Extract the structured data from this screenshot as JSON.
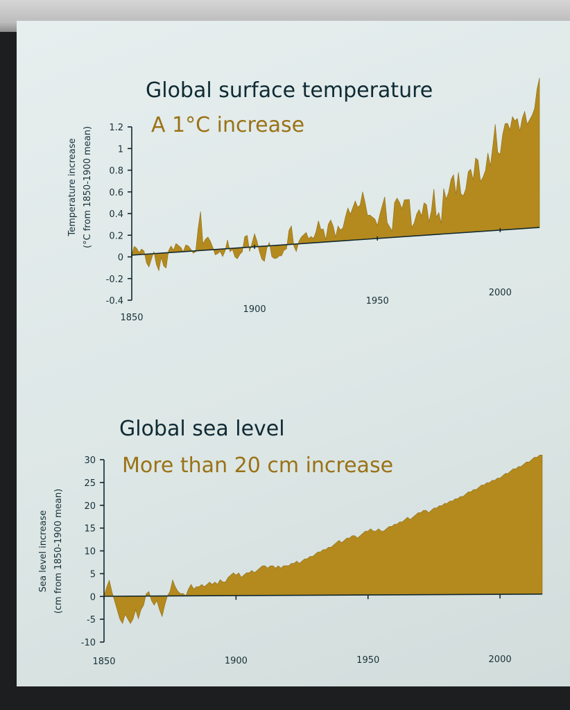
{
  "colors": {
    "fill": "#b48a1e",
    "text": "#0f2a33",
    "accent": "#9a7216"
  },
  "chart_data": [
    {
      "type": "area",
      "title": "Global surface temperature",
      "subtitle": "A 1°C increase",
      "ylabel_line1": "Temperature increase",
      "ylabel_line2": "(°C from 1850-1900 mean)",
      "ylim": [
        -0.4,
        1.2
      ],
      "y_ticks": [
        "1.2",
        "1",
        "0.8",
        "0.6",
        "0.4",
        "0.2",
        "0",
        "-0.2",
        "-0.4"
      ],
      "x_ticks": [
        "1850",
        "1900",
        "1950",
        "2000"
      ],
      "xlim": [
        1850,
        2016
      ],
      "points": [
        [
          1850,
          0.0
        ],
        [
          1851,
          0.08
        ],
        [
          1852,
          0.06
        ],
        [
          1853,
          0.02
        ],
        [
          1854,
          0.05
        ],
        [
          1855,
          0.03
        ],
        [
          1856,
          -0.08
        ],
        [
          1857,
          -0.12
        ],
        [
          1858,
          -0.05
        ],
        [
          1859,
          0.02
        ],
        [
          1860,
          -0.1
        ],
        [
          1861,
          -0.16
        ],
        [
          1862,
          -0.04
        ],
        [
          1863,
          -0.12
        ],
        [
          1864,
          -0.14
        ],
        [
          1865,
          0.02
        ],
        [
          1866,
          0.06
        ],
        [
          1867,
          0.02
        ],
        [
          1868,
          0.08
        ],
        [
          1869,
          0.06
        ],
        [
          1870,
          0.04
        ],
        [
          1871,
          0.0
        ],
        [
          1872,
          0.06
        ],
        [
          1873,
          0.05
        ],
        [
          1874,
          0.02
        ],
        [
          1875,
          -0.02
        ],
        [
          1876,
          -0.01
        ],
        [
          1877,
          0.2
        ],
        [
          1878,
          0.36
        ],
        [
          1879,
          0.06
        ],
        [
          1880,
          0.1
        ],
        [
          1881,
          0.12
        ],
        [
          1882,
          0.08
        ],
        [
          1883,
          0.02
        ],
        [
          1884,
          -0.05
        ],
        [
          1885,
          -0.04
        ],
        [
          1886,
          -0.02
        ],
        [
          1887,
          -0.07
        ],
        [
          1888,
          -0.02
        ],
        [
          1889,
          0.08
        ],
        [
          1890,
          -0.03
        ],
        [
          1891,
          -0.01
        ],
        [
          1892,
          -0.08
        ],
        [
          1893,
          -0.1
        ],
        [
          1894,
          -0.06
        ],
        [
          1895,
          -0.04
        ],
        [
          1896,
          0.1
        ],
        [
          1897,
          0.11
        ],
        [
          1898,
          -0.04
        ],
        [
          1899,
          0.04
        ],
        [
          1900,
          0.12
        ],
        [
          1901,
          0.05
        ],
        [
          1902,
          -0.05
        ],
        [
          1903,
          -0.12
        ],
        [
          1904,
          -0.14
        ],
        [
          1905,
          -0.02
        ],
        [
          1906,
          0.03
        ],
        [
          1907,
          -0.1
        ],
        [
          1908,
          -0.12
        ],
        [
          1909,
          -0.12
        ],
        [
          1910,
          -0.1
        ],
        [
          1911,
          -0.1
        ],
        [
          1912,
          -0.05
        ],
        [
          1913,
          -0.04
        ],
        [
          1914,
          0.13
        ],
        [
          1915,
          0.17
        ],
        [
          1916,
          -0.02
        ],
        [
          1917,
          -0.07
        ],
        [
          1918,
          0.02
        ],
        [
          1919,
          0.06
        ],
        [
          1920,
          0.08
        ],
        [
          1921,
          0.1
        ],
        [
          1922,
          0.04
        ],
        [
          1923,
          0.06
        ],
        [
          1924,
          0.04
        ],
        [
          1925,
          0.1
        ],
        [
          1926,
          0.2
        ],
        [
          1927,
          0.12
        ],
        [
          1928,
          0.12
        ],
        [
          1929,
          0.02
        ],
        [
          1930,
          0.16
        ],
        [
          1931,
          0.2
        ],
        [
          1932,
          0.14
        ],
        [
          1933,
          0.04
        ],
        [
          1934,
          0.14
        ],
        [
          1935,
          0.1
        ],
        [
          1936,
          0.12
        ],
        [
          1937,
          0.22
        ],
        [
          1938,
          0.3
        ],
        [
          1939,
          0.24
        ],
        [
          1940,
          0.3
        ],
        [
          1941,
          0.36
        ],
        [
          1942,
          0.3
        ],
        [
          1943,
          0.32
        ],
        [
          1944,
          0.44
        ],
        [
          1945,
          0.34
        ],
        [
          1946,
          0.22
        ],
        [
          1947,
          0.22
        ],
        [
          1948,
          0.2
        ],
        [
          1949,
          0.18
        ],
        [
          1950,
          0.12
        ],
        [
          1951,
          0.22
        ],
        [
          1952,
          0.3
        ],
        [
          1953,
          0.38
        ],
        [
          1954,
          0.14
        ],
        [
          1955,
          0.1
        ],
        [
          1956,
          0.06
        ],
        [
          1957,
          0.32
        ],
        [
          1958,
          0.36
        ],
        [
          1959,
          0.32
        ],
        [
          1960,
          0.26
        ],
        [
          1961,
          0.34
        ],
        [
          1962,
          0.34
        ],
        [
          1963,
          0.34
        ],
        [
          1964,
          0.08
        ],
        [
          1965,
          0.12
        ],
        [
          1966,
          0.2
        ],
        [
          1967,
          0.24
        ],
        [
          1968,
          0.18
        ],
        [
          1969,
          0.3
        ],
        [
          1970,
          0.28
        ],
        [
          1971,
          0.12
        ],
        [
          1972,
          0.22
        ],
        [
          1973,
          0.42
        ],
        [
          1974,
          0.16
        ],
        [
          1975,
          0.2
        ],
        [
          1976,
          0.1
        ],
        [
          1977,
          0.42
        ],
        [
          1978,
          0.32
        ],
        [
          1979,
          0.38
        ],
        [
          1980,
          0.5
        ],
        [
          1981,
          0.54
        ],
        [
          1982,
          0.36
        ],
        [
          1983,
          0.56
        ],
        [
          1984,
          0.36
        ],
        [
          1985,
          0.34
        ],
        [
          1986,
          0.4
        ],
        [
          1987,
          0.56
        ],
        [
          1988,
          0.58
        ],
        [
          1989,
          0.48
        ],
        [
          1990,
          0.68
        ],
        [
          1991,
          0.66
        ],
        [
          1992,
          0.46
        ],
        [
          1993,
          0.5
        ],
        [
          1994,
          0.56
        ],
        [
          1995,
          0.72
        ],
        [
          1996,
          0.6
        ],
        [
          1997,
          0.78
        ],
        [
          1998,
          0.98
        ],
        [
          1999,
          0.72
        ],
        [
          2000,
          0.7
        ],
        [
          2001,
          0.88
        ],
        [
          2002,
          0.98
        ],
        [
          2003,
          0.98
        ],
        [
          2004,
          0.92
        ],
        [
          2005,
          1.04
        ],
        [
          2006,
          1.0
        ],
        [
          2007,
          1.02
        ],
        [
          2008,
          0.9
        ],
        [
          2009,
          1.02
        ],
        [
          2010,
          1.08
        ],
        [
          2011,
          0.96
        ],
        [
          2012,
          1.0
        ],
        [
          2013,
          1.04
        ],
        [
          2014,
          1.1
        ],
        [
          2015,
          1.28
        ],
        [
          2016,
          1.38
        ]
      ]
    },
    {
      "type": "area",
      "title": "Global sea level",
      "subtitle": "More than 20 cm increase",
      "ylabel_line1": "Sea level increase",
      "ylabel_line2": "(cm from 1850-1900 mean)",
      "ylim": [
        -10,
        30
      ],
      "y_ticks": [
        "30",
        "25",
        "20",
        "15",
        "10",
        "5",
        "0",
        "-5",
        "-10"
      ],
      "x_ticks": [
        "1850",
        "1900",
        "1950",
        "2000"
      ],
      "xlim": [
        1850,
        2016
      ],
      "points": [
        [
          1850,
          0
        ],
        [
          1851,
          2
        ],
        [
          1852,
          3.5
        ],
        [
          1853,
          1
        ],
        [
          1854,
          -1
        ],
        [
          1855,
          -3
        ],
        [
          1856,
          -5
        ],
        [
          1857,
          -6
        ],
        [
          1858,
          -4
        ],
        [
          1859,
          -5
        ],
        [
          1860,
          -6
        ],
        [
          1861,
          -5
        ],
        [
          1862,
          -3
        ],
        [
          1863,
          -5
        ],
        [
          1864,
          -3
        ],
        [
          1865,
          -2
        ],
        [
          1866,
          0.5
        ],
        [
          1867,
          1
        ],
        [
          1868,
          -1
        ],
        [
          1869,
          -2
        ],
        [
          1870,
          -1
        ],
        [
          1871,
          -3
        ],
        [
          1872,
          -4.5
        ],
        [
          1873,
          -2
        ],
        [
          1874,
          0
        ],
        [
          1875,
          1
        ],
        [
          1876,
          3.5
        ],
        [
          1877,
          2
        ],
        [
          1878,
          1
        ],
        [
          1879,
          0.5
        ],
        [
          1880,
          0.5
        ],
        [
          1881,
          0
        ],
        [
          1882,
          1.5
        ],
        [
          1883,
          2.5
        ],
        [
          1884,
          1.5
        ],
        [
          1885,
          2
        ],
        [
          1886,
          2
        ],
        [
          1887,
          2.5
        ],
        [
          1888,
          2
        ],
        [
          1889,
          2.5
        ],
        [
          1890,
          3
        ],
        [
          1891,
          2.5
        ],
        [
          1892,
          3
        ],
        [
          1893,
          2.5
        ],
        [
          1894,
          3.5
        ],
        [
          1895,
          3
        ],
        [
          1896,
          3
        ],
        [
          1897,
          4
        ],
        [
          1898,
          4.5
        ],
        [
          1899,
          5
        ],
        [
          1900,
          4.5
        ],
        [
          1901,
          5
        ],
        [
          1902,
          4
        ],
        [
          1903,
          4.5
        ],
        [
          1904,
          5
        ],
        [
          1905,
          5
        ],
        [
          1906,
          5.5
        ],
        [
          1907,
          5
        ],
        [
          1908,
          5.5
        ],
        [
          1909,
          6
        ],
        [
          1910,
          6.5
        ],
        [
          1911,
          6.5
        ],
        [
          1912,
          6
        ],
        [
          1913,
          6.5
        ],
        [
          1914,
          6.5
        ],
        [
          1915,
          6
        ],
        [
          1916,
          6.5
        ],
        [
          1917,
          6
        ],
        [
          1918,
          6.5
        ],
        [
          1919,
          6.5
        ],
        [
          1920,
          6.5
        ],
        [
          1921,
          7
        ],
        [
          1922,
          7
        ],
        [
          1923,
          7.5
        ],
        [
          1924,
          7
        ],
        [
          1925,
          7.5
        ],
        [
          1926,
          8
        ],
        [
          1927,
          8
        ],
        [
          1928,
          8.5
        ],
        [
          1929,
          8.5
        ],
        [
          1930,
          9
        ],
        [
          1931,
          9.5
        ],
        [
          1932,
          9.5
        ],
        [
          1933,
          10
        ],
        [
          1934,
          10
        ],
        [
          1935,
          10.5
        ],
        [
          1936,
          10.5
        ],
        [
          1937,
          11
        ],
        [
          1938,
          11.5
        ],
        [
          1939,
          12
        ],
        [
          1940,
          11.5
        ],
        [
          1941,
          12
        ],
        [
          1942,
          12.5
        ],
        [
          1943,
          12.5
        ],
        [
          1944,
          13
        ],
        [
          1945,
          13
        ],
        [
          1946,
          12.5
        ],
        [
          1947,
          13
        ],
        [
          1948,
          13.5
        ],
        [
          1949,
          14
        ],
        [
          1950,
          14
        ],
        [
          1951,
          14.5
        ],
        [
          1952,
          14
        ],
        [
          1953,
          14
        ],
        [
          1954,
          14.5
        ],
        [
          1955,
          14
        ],
        [
          1956,
          14
        ],
        [
          1957,
          14.5
        ],
        [
          1958,
          15
        ],
        [
          1959,
          15
        ],
        [
          1960,
          15.5
        ],
        [
          1961,
          15.5
        ],
        [
          1962,
          16
        ],
        [
          1963,
          16
        ],
        [
          1964,
          16.5
        ],
        [
          1965,
          17
        ],
        [
          1966,
          16.5
        ],
        [
          1967,
          17
        ],
        [
          1968,
          17.5
        ],
        [
          1969,
          18
        ],
        [
          1970,
          18
        ],
        [
          1971,
          18.5
        ],
        [
          1972,
          18.5
        ],
        [
          1973,
          18
        ],
        [
          1974,
          18.5
        ],
        [
          1975,
          19
        ],
        [
          1976,
          19
        ],
        [
          1977,
          19.5
        ],
        [
          1978,
          19.5
        ],
        [
          1979,
          20
        ],
        [
          1980,
          20
        ],
        [
          1981,
          20.5
        ],
        [
          1982,
          20.5
        ],
        [
          1983,
          21
        ],
        [
          1984,
          21
        ],
        [
          1985,
          21.5
        ],
        [
          1986,
          21.5
        ],
        [
          1987,
          22
        ],
        [
          1988,
          22.5
        ],
        [
          1989,
          22.5
        ],
        [
          1990,
          23
        ],
        [
          1991,
          23
        ],
        [
          1992,
          23.5
        ],
        [
          1993,
          24
        ],
        [
          1994,
          24
        ],
        [
          1995,
          24.5
        ],
        [
          1996,
          24.5
        ],
        [
          1997,
          25
        ],
        [
          1998,
          25
        ],
        [
          1999,
          25.5
        ],
        [
          2000,
          25.5
        ],
        [
          2001,
          26
        ],
        [
          2002,
          26.5
        ],
        [
          2003,
          26.5
        ],
        [
          2004,
          27
        ],
        [
          2005,
          27.5
        ],
        [
          2006,
          27.5
        ],
        [
          2007,
          28
        ],
        [
          2008,
          28
        ],
        [
          2009,
          28.5
        ],
        [
          2010,
          29
        ],
        [
          2011,
          29
        ],
        [
          2012,
          29.5
        ],
        [
          2013,
          30
        ],
        [
          2014,
          30
        ],
        [
          2015,
          30.5
        ],
        [
          2016,
          30.5
        ]
      ]
    }
  ]
}
